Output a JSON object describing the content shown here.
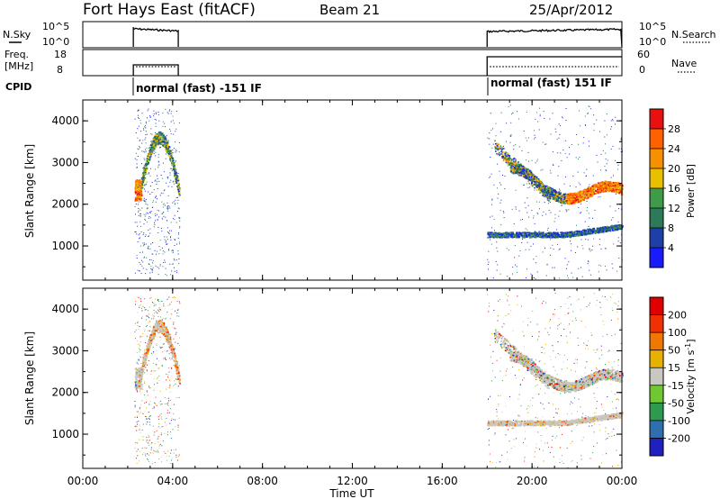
{
  "header": {
    "title": "Fort Hays East (fitACF)",
    "beam": "Beam 21",
    "date": "25/Apr/2012"
  },
  "top_panels": {
    "nsky_label": "N.Sky",
    "nsearch_label": "N.Search",
    "noise_ticks": [
      "10^5",
      "10^0"
    ],
    "freq_label": "Freq.",
    "freq_unit": "[MHz]",
    "freq_ticks": [
      "18",
      "8"
    ],
    "nave_label": "Nave",
    "nave_ticks": [
      "60",
      "0"
    ],
    "cpid_label": "CPID",
    "cpid_modes": [
      {
        "label": "normal (fast) -151 IF",
        "start_hour": 2.25,
        "end_hour": 4.25
      },
      {
        "label": "normal (fast) 151 IF",
        "start_hour": 18.0,
        "end_hour": 24.0
      }
    ]
  },
  "panel_labels": {
    "ylabel": "Slant Range [km]",
    "xlabel": "Time UT"
  },
  "colorbars": {
    "power": {
      "label": "Power [dB]",
      "ticks": [
        "28",
        "24",
        "20",
        "16",
        "12",
        "8",
        "4"
      ],
      "colors": [
        "#1a1aff",
        "#1f3fa8",
        "#2c7a5a",
        "#3f9a4a",
        "#e8c000",
        "#f59000",
        "#ff6000",
        "#e81010"
      ]
    },
    "velocity": {
      "label": "Velocity [m s",
      "label_sup": "-1",
      "label_end": "]",
      "ticks": [
        "200",
        "100",
        "50",
        "15",
        "-15",
        "-50",
        "-100",
        "-200"
      ],
      "colors": [
        "#2020c0",
        "#2e6fb0",
        "#2e9a50",
        "#6ec830",
        "#c8c8c0",
        "#e8b000",
        "#f07800",
        "#f03000",
        "#e00000"
      ]
    }
  },
  "chart_data": [
    {
      "type": "heatmap",
      "name": "Power",
      "xlabel": "Time UT",
      "ylabel": "Slant Range [km]",
      "xlim": [
        0,
        24
      ],
      "ylim": [
        180,
        4500
      ],
      "x_ticks": [
        "00:00",
        "04:00",
        "08:00",
        "12:00",
        "16:00",
        "20:00",
        "00:00"
      ],
      "y_ticks": [
        1000,
        2000,
        3000,
        4000
      ],
      "regions": [
        {
          "t0": 2.3,
          "t1": 4.3,
          "r0": 2000,
          "r1": 3800,
          "level": "mixed"
        },
        {
          "t0": 18.0,
          "t1": 24.0,
          "r0": 1100,
          "r1": 4100,
          "level": "mixed"
        }
      ]
    },
    {
      "type": "heatmap",
      "name": "Velocity",
      "xlabel": "Time UT",
      "ylabel": "Slant Range [km]",
      "xlim": [
        0,
        24
      ],
      "ylim": [
        180,
        4500
      ],
      "x_ticks": [
        "00:00",
        "04:00",
        "08:00",
        "12:00",
        "16:00",
        "20:00",
        "00:00"
      ],
      "y_ticks": [
        1000,
        2000,
        3000,
        4000
      ],
      "regions": [
        {
          "t0": 2.3,
          "t1": 4.3,
          "r0": 2000,
          "r1": 3800,
          "level": "mixed"
        },
        {
          "t0": 18.0,
          "t1": 24.0,
          "r0": 1100,
          "r1": 4100,
          "level": "mixed"
        }
      ]
    }
  ]
}
